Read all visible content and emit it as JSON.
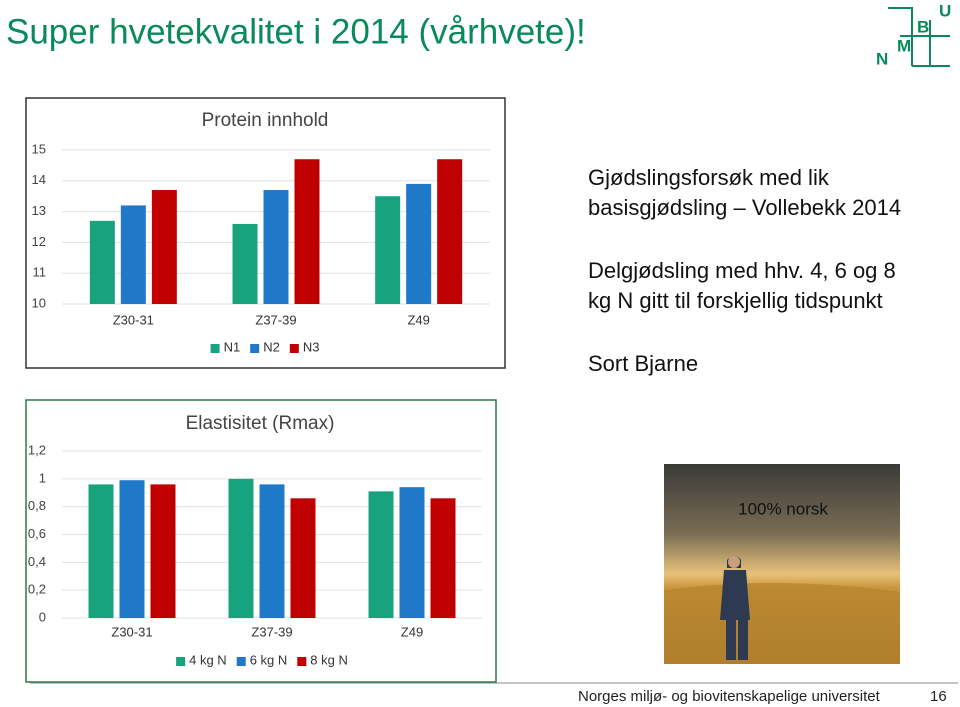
{
  "title": "Super hvetekvalitet i 2014 (vårhvete)!",
  "logo": [
    "N",
    "M",
    "B",
    "U"
  ],
  "text": [
    "Gjødslingsforsøk med lik",
    "basisgjødsling – Vollebekk 2014",
    "Delgjødsling med hhv. 4, 6 og 8",
    "kg N gitt til forskjellig tidspunkt",
    "Sort Bjarne"
  ],
  "photo_caption": "100% norsk",
  "footer": {
    "institution": "Norges miljø- og biovitenskapelige universitet",
    "page": "16"
  },
  "chart_data": [
    {
      "type": "bar",
      "title": "Protein innhold",
      "categories": [
        "Z30-31",
        "Z37-39",
        "Z49"
      ],
      "series": [
        {
          "name": "N1",
          "color": "#17a37e",
          "values": [
            12.7,
            12.6,
            13.5
          ]
        },
        {
          "name": "N2",
          "color": "#1f78c8",
          "values": [
            13.2,
            13.7,
            13.9
          ]
        },
        {
          "name": "N3",
          "color": "#c00000",
          "values": [
            13.7,
            14.7,
            14.7
          ]
        }
      ],
      "ylim": [
        10,
        15
      ],
      "yticks": [
        10,
        11,
        12,
        13,
        14,
        15
      ],
      "grid": true,
      "legend": "bottom"
    },
    {
      "type": "bar",
      "title": "Elastisitet (Rmax)",
      "categories": [
        "Z30-31",
        "Z37-39",
        "Z49"
      ],
      "series": [
        {
          "name": "4 kg N",
          "color": "#17a37e",
          "values": [
            0.96,
            1.0,
            0.91
          ]
        },
        {
          "name": "6 kg N",
          "color": "#1f78c8",
          "values": [
            0.99,
            0.96,
            0.94
          ]
        },
        {
          "name": "8 kg N",
          "color": "#c00000",
          "values": [
            0.96,
            0.86,
            0.86
          ]
        }
      ],
      "ylim": [
        0,
        1.2
      ],
      "yticks": [
        0,
        {
          "value": 0.2,
          "label": "0,2"
        },
        {
          "value": 0.4,
          "label": "0,4"
        },
        {
          "value": 0.6,
          "label": "0,6"
        },
        {
          "value": 0.8,
          "label": "0,8"
        },
        1,
        {
          "value": 1.2,
          "label": "1,2"
        }
      ],
      "grid": true,
      "legend": "bottom"
    }
  ]
}
